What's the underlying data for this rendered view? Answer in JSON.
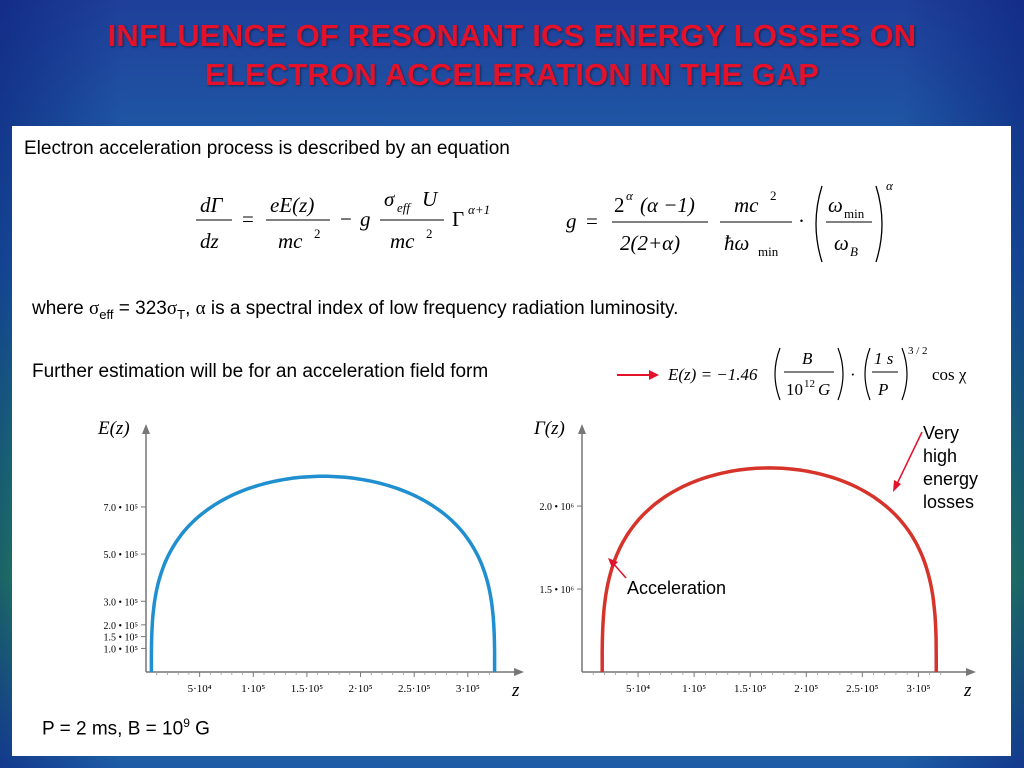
{
  "slide": {
    "title_line1": "INFLUENCE OF RESONANT ICS ENERGY LOSSES ON",
    "title_line2": "ELECTRON ACCELERATION IN THE GAP",
    "intro": "Electron acceleration process is described by an equation",
    "where_prefix": "where ",
    "sigma_symbol": "σ",
    "eff_sub": "eff",
    "where_equals": " = 323",
    "T_sub": "T",
    "alpha_symbol": "α",
    "where_tail": " is a spectral index of low frequency radiation luminosity.",
    "further": "Further estimation will be for an acceleration field form",
    "params_prefix": "P = 2 ms, B = 10",
    "params_exp": "9",
    "params_unit": " G",
    "accent_color": "#e3122a"
  },
  "equations": {
    "eq1": {
      "lhs_num": "dΓ",
      "lhs_den": "dz",
      "eq": "=",
      "t1_num": "eE(z)",
      "t1_den": "mc",
      "two": "2",
      "minus": "−",
      "g": "g",
      "sigma": "σ",
      "eff": "eff",
      "U": "U",
      "t2_den": "mc",
      "Gamma": "Γ",
      "gamma_exp": "α+1"
    },
    "eq2": {
      "g": "g",
      "eq": "=",
      "two_alpha": "2",
      "alpha": "α",
      "num_a": "(α −1)",
      "den_a": "2(2+α)",
      "mc": "mc",
      "two": "2",
      "hbar_omega": "ħω",
      "min": "min",
      "dot": "·",
      "omega": "ω",
      "B": "B",
      "alpha_exp": "α"
    },
    "eq3": {
      "lhs": "E(z) = −1.46",
      "B": "B",
      "ten": "10",
      "twelve": "12",
      "G": "G",
      "dot": "·",
      "one_s": "1 s",
      "P": "P",
      "exp": "3 / 2",
      "cos": "cos χ"
    }
  },
  "annotations": {
    "very_high": [
      "Very",
      "high",
      "energy",
      "losses"
    ],
    "acceleration": "Acceleration",
    "arrow_color": "#e3122a"
  },
  "chart_data": [
    {
      "type": "line",
      "ylabel": "E(z)",
      "xlabel": "z",
      "color": "#1f8fd0",
      "xlim": [
        0,
        330000
      ],
      "ylim": [
        0,
        950000
      ],
      "x_ticks": [
        50000,
        100000,
        150000,
        200000,
        250000,
        300000
      ],
      "x_tick_labels": [
        "5·10⁴",
        "1·10⁵",
        "1.5·10⁵",
        "2·10⁵",
        "2.5·10⁵",
        "3·10⁵"
      ],
      "y_ticks": [
        100000,
        150000,
        200000,
        300000,
        500000,
        700000
      ],
      "y_tick_labels": [
        "1.0 • 10⁵",
        "1.5 • 10⁵",
        "2.0 • 10⁵",
        "3.0 • 10⁵",
        "5.0 • 10⁵",
        "7.0 • 10⁵"
      ],
      "shape": "semicircle",
      "x_start": 5000,
      "x_end": 325000,
      "peak": 830000
    },
    {
      "type": "line",
      "ylabel": "Γ(z)",
      "xlabel": "z",
      "color": "#d6332a",
      "xlim": [
        0,
        330000
      ],
      "ylim": [
        1000000,
        2350000
      ],
      "x_ticks": [
        50000,
        100000,
        150000,
        200000,
        250000,
        300000
      ],
      "x_tick_labels": [
        "5·10⁴",
        "1·10⁵",
        "1.5·10⁵",
        "2·10⁵",
        "2.5·10⁵",
        "3·10⁵"
      ],
      "y_ticks": [
        1500000,
        2000000
      ],
      "y_tick_labels": [
        "1.5 • 10⁶",
        "2.0 • 10⁶"
      ],
      "shape": "semicircle",
      "x_start": 18000,
      "x_end": 316000,
      "peak": 2230000
    }
  ]
}
